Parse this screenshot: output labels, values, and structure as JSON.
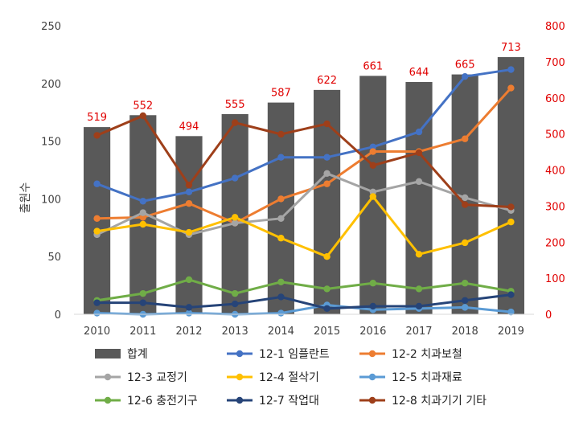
{
  "chart_data": {
    "type": "bar+line",
    "categories": [
      "2010",
      "2011",
      "2012",
      "2013",
      "2014",
      "2015",
      "2016",
      "2017",
      "2018",
      "2019"
    ],
    "ylabel": "출원수",
    "ylim_left": [
      0,
      250
    ],
    "yticks_left": [
      "0",
      "50",
      "100",
      "150",
      "200",
      "250"
    ],
    "ylim_right": [
      0,
      800
    ],
    "yticks_right": [
      "0",
      "100",
      "200",
      "300",
      "400",
      "500",
      "600",
      "700",
      "800"
    ],
    "bars": {
      "name": "합계",
      "axis": "right",
      "color": "#595959",
      "values": [
        519,
        552,
        494,
        555,
        587,
        622,
        661,
        644,
        665,
        713
      ],
      "labels": [
        "519",
        "552",
        "494",
        "555",
        "587",
        "622",
        "661",
        "644",
        "665",
        "713"
      ],
      "label_color": "#e00000"
    },
    "series": [
      {
        "name": "12-1 임플란트",
        "axis": "left",
        "color": "#4472c4",
        "values": [
          113,
          98,
          106,
          118,
          136,
          136,
          145,
          158,
          206,
          212
        ]
      },
      {
        "name": "12-2 치과보철",
        "axis": "left",
        "color": "#ed7d31",
        "values": [
          83,
          84,
          96,
          79,
          100,
          113,
          141,
          141,
          152,
          196
        ]
      },
      {
        "name": "12-3 교정기",
        "axis": "left",
        "color": "#a5a5a5",
        "values": [
          69,
          88,
          69,
          79,
          83,
          122,
          106,
          115,
          101,
          90
        ]
      },
      {
        "name": "12-4 절삭기",
        "axis": "left",
        "color": "#ffc000",
        "values": [
          72,
          78,
          71,
          84,
          66,
          50,
          102,
          52,
          62,
          80
        ]
      },
      {
        "name": "12-5 치과재료",
        "axis": "left",
        "color": "#5b9bd5",
        "values": [
          1,
          0,
          1,
          0,
          1,
          8,
          4,
          5,
          6,
          2
        ]
      },
      {
        "name": "12-6 충전기구",
        "axis": "left",
        "color": "#70ad47",
        "values": [
          12,
          18,
          30,
          18,
          28,
          22,
          27,
          22,
          27,
          20
        ]
      },
      {
        "name": "12-7 작업대",
        "axis": "left",
        "color": "#264478",
        "values": [
          10,
          10,
          6,
          9,
          15,
          5,
          7,
          7,
          12,
          17
        ]
      },
      {
        "name": "12-8 치과기기 기타",
        "axis": "left",
        "color": "#9e3f1a",
        "values": [
          155,
          172,
          112,
          166,
          156,
          165,
          129,
          140,
          95,
          93
        ]
      }
    ],
    "legend_position": "bottom",
    "grid": false
  }
}
